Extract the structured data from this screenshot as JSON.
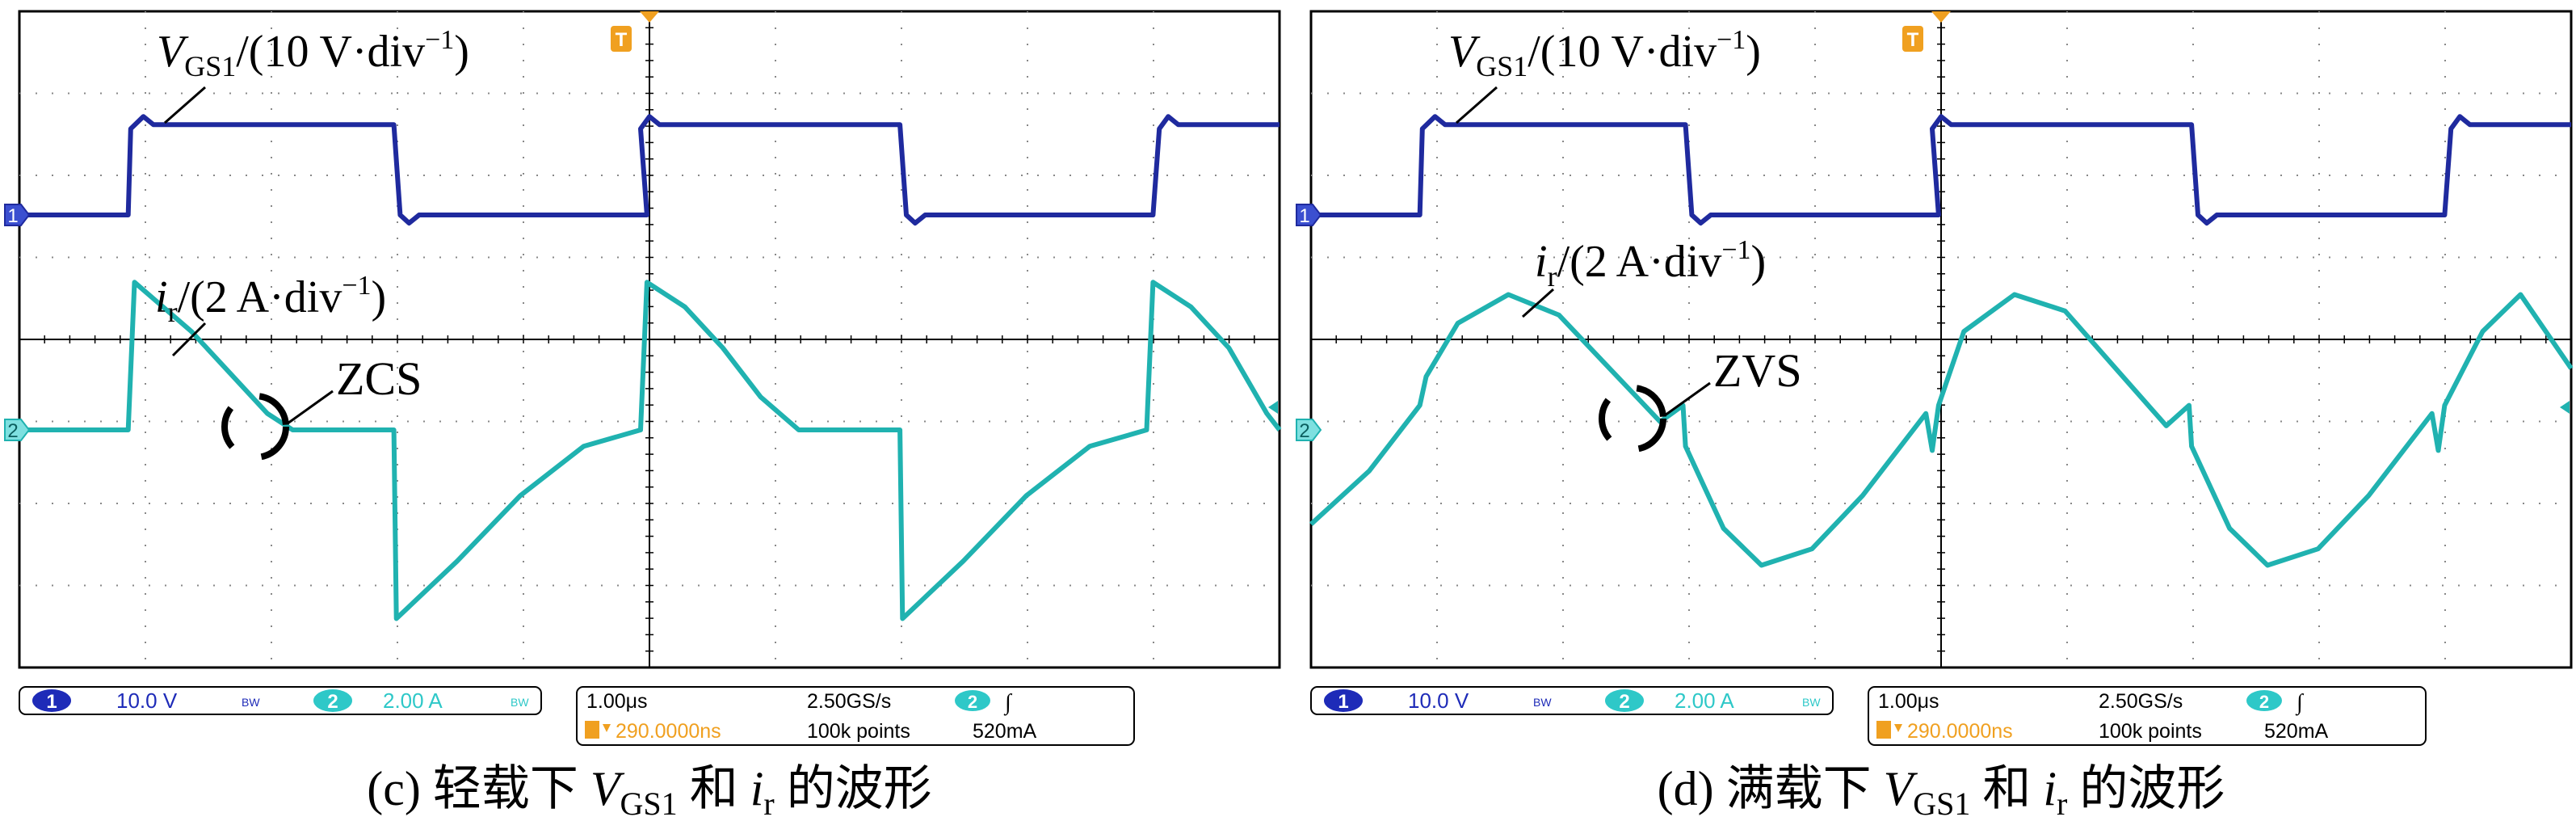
{
  "colors": {
    "ch1": "#1f2a9e",
    "ch2": "#20b2b0",
    "trigger": "#f0a020",
    "grid": "#888888",
    "frame": "#000000",
    "ch1_badge": "#1e2bb8",
    "ch2_badge": "#2ec8c8"
  },
  "panels": [
    {
      "id": "c",
      "caption": {
        "prefix": "(c) 轻载下 ",
        "v_main": "V",
        "v_sub": "GS1",
        "mid": " 和 ",
        "i_main": "i",
        "i_sub": "r",
        "suffix": " 的波形"
      },
      "label_v": {
        "main": "V",
        "sub": "GS1",
        "rest": "/(10 V·div",
        "sup": "−1",
        "close": ")"
      },
      "label_i": {
        "main": "i",
        "sub": "r",
        "rest": "/(2 A·div",
        "sup": "−1",
        "close": ")"
      },
      "annotation": "ZCS",
      "channel_markers": {
        "ch1": "1",
        "ch2": "2",
        "trigger": "T"
      },
      "status": {
        "ch1_num": "1",
        "ch1_scale": "10.0 V",
        "bw1": "BW",
        "ch2_num": "2",
        "ch2_scale": "2.00 A",
        "bw2": "BW",
        "timebase": "1.00μs",
        "sample_rate": "2.50GS/s",
        "trig_src": "2",
        "trig_slope": "∫",
        "trig_pos": "290.0000ns",
        "record": "100k points",
        "trig_level": "520mA"
      }
    },
    {
      "id": "d",
      "caption": {
        "prefix": "(d) 满载下 ",
        "v_main": "V",
        "v_sub": "GS1",
        "mid": " 和 ",
        "i_main": "i",
        "i_sub": "r",
        "suffix": " 的波形"
      },
      "label_v": {
        "main": "V",
        "sub": "GS1",
        "rest": "/(10 V·div",
        "sup": "−1",
        "close": ")"
      },
      "label_i": {
        "main": "i",
        "sub": "r",
        "rest": "/(2 A·div",
        "sup": "−1",
        "close": ")"
      },
      "annotation": "ZVS",
      "channel_markers": {
        "ch1": "1",
        "ch2": "2",
        "trigger": "T"
      },
      "status": {
        "ch1_num": "1",
        "ch1_scale": "10.0 V",
        "bw1": "BW",
        "ch2_num": "2",
        "ch2_scale": "2.00 A",
        "bw2": "BW",
        "timebase": "1.00μs",
        "sample_rate": "2.50GS/s",
        "trig_src": "2",
        "trig_slope": "∫",
        "trig_pos": "290.0000ns",
        "record": "100k points",
        "trig_level": "520mA"
      }
    }
  ],
  "chart_data": [
    {
      "type": "line",
      "title": "",
      "x_unit": "μs",
      "x_range": [
        -4.96,
        5.0
      ],
      "grid_divisions": {
        "x": 10,
        "y": 8
      },
      "grid": true,
      "series": [
        {
          "name": "VGS1",
          "unit": "V",
          "x": [
            -4.96,
            -4.1,
            -4.08,
            -3.98,
            -3.9,
            -2.0,
            -1.95,
            -1.88,
            -1.8,
            0.0,
            -0.05,
            0.02,
            0.1,
            2.0,
            2.05,
            2.12,
            2.2,
            4.0,
            4.05,
            4.12,
            4.2,
            5.0
          ],
          "y": [
            0,
            0,
            10.5,
            12,
            11,
            11,
            0,
            -1,
            0,
            0,
            10.5,
            12,
            11,
            11,
            0,
            -1,
            0,
            0,
            10.5,
            12,
            11,
            11
          ]
        },
        {
          "name": "ir",
          "unit": "A",
          "x": [
            -4.96,
            -4.1,
            -4.05,
            -3.9,
            -3.6,
            -3.3,
            -3.0,
            -2.8,
            -2.0,
            -1.98,
            -1.5,
            -1.0,
            -0.5,
            -0.05,
            0.0,
            0.3,
            0.6,
            0.9,
            1.2,
            2.0,
            2.02,
            2.5,
            3.0,
            3.5,
            3.95,
            4.0,
            4.3,
            4.6,
            4.9,
            5.0
          ],
          "y": [
            0,
            0,
            3.6,
            3.2,
            2.4,
            1.4,
            0.4,
            0,
            0,
            -4.6,
            -3.2,
            -1.6,
            -0.4,
            0,
            3.6,
            3.0,
            2.0,
            0.8,
            0,
            0,
            -4.6,
            -3.2,
            -1.6,
            -0.4,
            0,
            3.6,
            3.0,
            2.0,
            0.4,
            0
          ]
        }
      ]
    },
    {
      "type": "line",
      "title": "",
      "x_unit": "μs",
      "x_range": [
        -4.96,
        5.0
      ],
      "grid_divisions": {
        "x": 10,
        "y": 8
      },
      "grid": true,
      "series": [
        {
          "name": "VGS1",
          "unit": "V",
          "x": [
            -4.96,
            -4.1,
            -4.08,
            -3.98,
            -3.9,
            -2.0,
            -1.95,
            -1.88,
            -1.8,
            0.0,
            -0.05,
            0.02,
            0.1,
            2.0,
            2.05,
            2.12,
            2.2,
            4.0,
            4.05,
            4.12,
            4.2,
            5.0
          ],
          "y": [
            0,
            0,
            10.5,
            12,
            11,
            11,
            0,
            -1,
            0,
            0,
            10.5,
            12,
            11,
            11,
            0,
            -1,
            0,
            0,
            10.5,
            12,
            11,
            11
          ]
        },
        {
          "name": "ir",
          "unit": "A",
          "x": [
            -4.96,
            -4.5,
            -4.1,
            -4.05,
            -3.8,
            -3.4,
            -3.0,
            -2.6,
            -2.2,
            -2.02,
            -2.0,
            -1.7,
            -1.4,
            -1.0,
            -0.6,
            -0.1,
            -0.05,
            0.0,
            0.2,
            0.6,
            1.0,
            1.4,
            1.8,
            1.98,
            2.0,
            2.3,
            2.6,
            3.0,
            3.4,
            3.9,
            3.95,
            4.0,
            4.3,
            4.6,
            5.0
          ],
          "y": [
            -2.3,
            -1.0,
            0.6,
            1.3,
            2.6,
            3.3,
            2.8,
            1.5,
            0.2,
            0.6,
            -0.4,
            -2.4,
            -3.3,
            -2.9,
            -1.6,
            0.4,
            -0.5,
            0.6,
            2.4,
            3.3,
            2.9,
            1.5,
            0.1,
            0.6,
            -0.4,
            -2.4,
            -3.3,
            -2.9,
            -1.6,
            0.4,
            -0.5,
            0.6,
            2.4,
            3.3,
            1.5
          ]
        }
      ]
    }
  ]
}
